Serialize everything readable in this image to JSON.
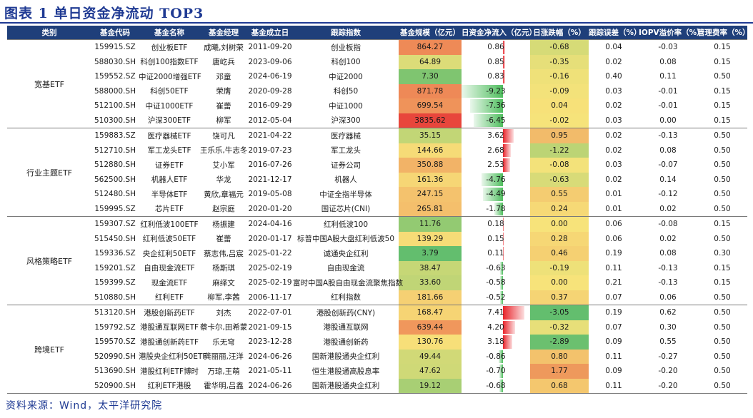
{
  "title": "图表 1  单日资金净流动 TOP3",
  "footer": "资料来源：Wind，太平洋研究院",
  "headers": [
    "类别",
    "基金代码",
    "基金名称",
    "基金经理",
    "基金成立日",
    "跟踪指数",
    "基金规模（亿元）",
    "日资金净流入（亿元）",
    "日涨跌幅（%）",
    "跟踪误差（%）",
    "IOPV溢价率（%）",
    "管理费率（%）"
  ],
  "colors": {
    "header_bg": "#1f3f7a",
    "title": "#1f3a93",
    "green": "#5cc46a",
    "red": "#e8232a",
    "yellow": "#f7e37a"
  },
  "groups": [
    {
      "category": "宽基ETF",
      "rows": [
        [
          "159915.SZ",
          "创业板ETF",
          "成曦,刘树荣",
          "2011-09-20",
          "创业板指",
          "864.27",
          "0.86",
          "-0.68",
          "0.04",
          "-0.03",
          "0.15"
        ],
        [
          "588030.SH",
          "科创100指数ETF",
          "唐屹兵",
          "2023-09-06",
          "科创100",
          "64.89",
          "0.85",
          "-0.35",
          "0.02",
          "0.08",
          "0.15"
        ],
        [
          "159552.SZ",
          "中证2000增强ETF",
          "邓童",
          "2024-06-19",
          "中证2000",
          "7.30",
          "0.83",
          "-0.16",
          "0.40",
          "0.11",
          "0.50"
        ],
        [
          "588000.SH",
          "科创50ETF",
          "荣膺",
          "2020-09-28",
          "科创50",
          "871.78",
          "-9.23",
          "-0.09",
          "0.03",
          "-0.01",
          "0.15"
        ],
        [
          "512100.SH",
          "中证1000ETF",
          "崔蕾",
          "2016-09-29",
          "中证1000",
          "699.54",
          "-7.36",
          "0.04",
          "0.02",
          "-0.01",
          "0.15"
        ],
        [
          "510300.SH",
          "沪深300ETF",
          "柳军",
          "2012-05-04",
          "沪深300",
          "3835.62",
          "-6.45",
          "-0.02",
          "0.03",
          "0.00",
          "0.15"
        ]
      ]
    },
    {
      "category": "行业主题ETF",
      "rows": [
        [
          "159883.SZ",
          "医疗器械ETF",
          "饶可凡",
          "2021-04-22",
          "医疗器械",
          "35.15",
          "3.62",
          "0.95",
          "0.02",
          "-0.13",
          "0.50"
        ],
        [
          "512710.SH",
          "军工龙头ETF",
          "王乐乐,牛志冬",
          "2019-07-23",
          "军工龙头",
          "144.66",
          "2.68",
          "-1.22",
          "0.02",
          "0.08",
          "0.50"
        ],
        [
          "512880.SH",
          "证券ETF",
          "艾小军",
          "2016-07-26",
          "证券公司",
          "350.88",
          "2.53",
          "-0.08",
          "0.03",
          "-0.07",
          "0.50"
        ],
        [
          "562500.SH",
          "机器人ETF",
          "华龙",
          "2021-12-17",
          "机器人",
          "161.36",
          "-4.76",
          "-0.63",
          "0.02",
          "0.14",
          "0.50"
        ],
        [
          "512480.SH",
          "半导体ETF",
          "黄欣,章福元",
          "2019-05-08",
          "中证全指半导体",
          "247.15",
          "-4.49",
          "0.55",
          "0.01",
          "-0.12",
          "0.50"
        ],
        [
          "159995.SZ",
          "芯片ETF",
          "赵宗庭",
          "2020-01-20",
          "国证芯片(CNI)",
          "265.81",
          "-1.78",
          "0.24",
          "0.01",
          "0.02",
          "0.50"
        ]
      ]
    },
    {
      "category": "风格策略ETF",
      "rows": [
        [
          "159307.SZ",
          "红利低波100ETF",
          "杨振建",
          "2024-04-16",
          "红利低波100",
          "11.76",
          "0.18",
          "0.00",
          "0.06",
          "-0.08",
          "0.15"
        ],
        [
          "515450.SH",
          "红利低波50ETF",
          "崔蕾",
          "2020-01-17",
          "标普中国A股大盘红利低波50",
          "139.29",
          "0.15",
          "0.28",
          "0.06",
          "0.02",
          "0.50"
        ],
        [
          "159336.SZ",
          "央企红利50ETF",
          "蔡志伟,吕宸",
          "2025-01-22",
          "诚通央企红利",
          "3.79",
          "0.11",
          "0.46",
          "0.19",
          "0.08",
          "0.30"
        ],
        [
          "159201.SZ",
          "自由现金流ETF",
          "杨斯琪",
          "2025-02-19",
          "自由现金流",
          "38.47",
          "-0.63",
          "-0.19",
          "0.11",
          "-0.13",
          "0.15"
        ],
        [
          "159399.SZ",
          "现金流ETF",
          "麻绎文",
          "2025-02-19",
          "富时中国A股自由现金流聚焦指数",
          "33.60",
          "-0.58",
          "0.00",
          "0.21",
          "-0.13",
          "0.15"
        ],
        [
          "510880.SH",
          "红利ETF",
          "柳军,李茜",
          "2006-11-17",
          "红利指数",
          "181.66",
          "-0.52",
          "0.37",
          "0.07",
          "0.06",
          "0.50"
        ]
      ]
    },
    {
      "category": "跨境ETF",
      "rows": [
        [
          "513120.SH",
          "港股创新药ETF",
          "刘杰",
          "2022-07-01",
          "港股创新药(CNY)",
          "168.47",
          "7.41",
          "-3.05",
          "0.19",
          "0.62",
          "0.50"
        ],
        [
          "159792.SZ",
          "港股通互联网ETF",
          "蔡卡尔,田希蒙",
          "2021-09-15",
          "港股通互联网",
          "639.44",
          "4.20",
          "-0.32",
          "0.07",
          "0.30",
          "0.50"
        ],
        [
          "159570.SZ",
          "港股通创新药ETF",
          "乐无穹",
          "2023-12-28",
          "港股通创新药",
          "130.76",
          "3.18",
          "-2.89",
          "0.09",
          "0.55",
          "0.50"
        ],
        [
          "520990.SH",
          "港股央企红利50ETF",
          "龚丽丽,汪洋",
          "2024-06-26",
          "国新港股通央企红利",
          "49.44",
          "-0.86",
          "0.80",
          "0.11",
          "-0.27",
          "0.50"
        ],
        [
          "513690.SH",
          "港股红利ETF博时",
          "万琼,王萌",
          "2021-05-11",
          "恒生港股通高股息率",
          "47.62",
          "-0.70",
          "1.77",
          "0.09",
          "-0.20",
          "0.50"
        ],
        [
          "520900.SH",
          "红利ETF港股",
          "霍华明,吕鑫",
          "2024-06-26",
          "国新港股通央企红利",
          "19.12",
          "-0.68",
          "0.68",
          "0.11",
          "-0.20",
          "0.50"
        ]
      ]
    }
  ]
}
